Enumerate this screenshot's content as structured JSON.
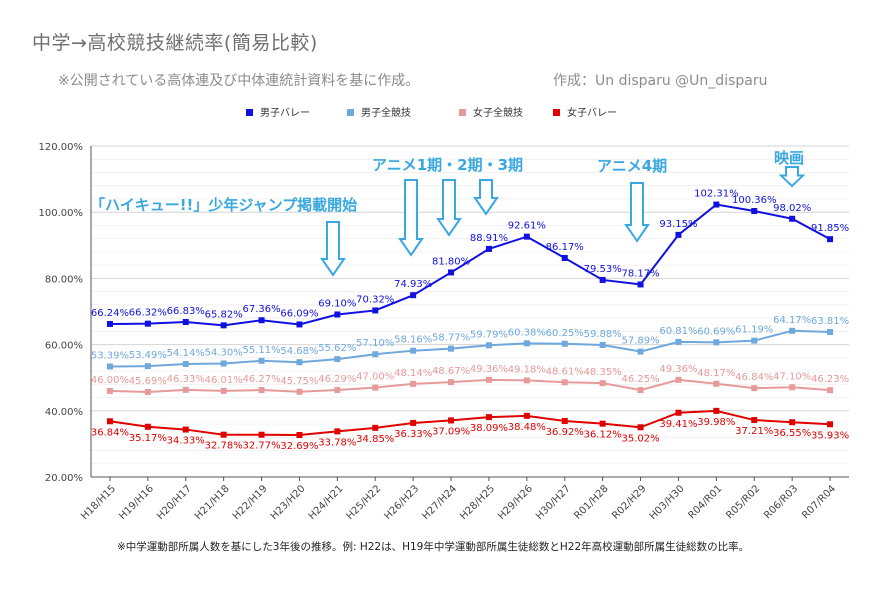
{
  "title": "中学→高校競技継続率(簡易比較)",
  "subtitle": "※公開されている高体連及び中体連統計資料を基に作成。",
  "author": "作成：Un disparu @Un_disparu",
  "footnote": "※中学運動部所属人数を基にした3年後の推移。例: H22は、H19年中学運動部所属生徒総数とH22年高校運動部所属生徒総数の比率。",
  "colors": {
    "boys_volley": "#1010e0",
    "boys_all": "#6fa8dc",
    "girls_all": "#e69a9a",
    "girls_volley": "#e00000",
    "annotation": "#3aa8e0"
  },
  "annotations": [
    {
      "text": "「ハイキュー!!」少年ジャンプ掲載開始",
      "at": "H24/H21"
    },
    {
      "text": "アニメ1期・2期・3期",
      "at": "H27/H24"
    },
    {
      "text": "アニメ4期",
      "at": "R02/H29"
    },
    {
      "text": "映画",
      "at": "R06/R03"
    }
  ],
  "chart_data": {
    "type": "line",
    "categories": [
      "H18/H15",
      "H19/H16",
      "H20/H17",
      "H21/H18",
      "H22/H19",
      "H23/H20",
      "H24/H21",
      "H25/H22",
      "H26/H23",
      "H27/H24",
      "H28/H25",
      "H29/H26",
      "H30/H27",
      "R01/H28",
      "R02/H29",
      "H03/H30",
      "R04/R01",
      "R05/R02",
      "R06/R03",
      "R07/R04"
    ],
    "ylim": [
      20,
      120
    ],
    "yticks": [
      "20.00%",
      "40.00%",
      "60.00%",
      "80.00%",
      "100.00%",
      "120.00%"
    ],
    "legend_position": "top",
    "grid": true,
    "series": [
      {
        "name": "男子バレー",
        "values": [
          66.24,
          66.32,
          66.83,
          65.82,
          67.36,
          66.09,
          69.1,
          70.32,
          74.93,
          81.8,
          88.91,
          92.61,
          86.17,
          79.53,
          78.17,
          93.15,
          102.31,
          100.36,
          98.02,
          91.85
        ],
        "labels": [
          "66.24%",
          "66.32%",
          "66.83%",
          "65.82%",
          "67.36%",
          "66.09%",
          "69.10%",
          "70.32%",
          "74.93%",
          "81.80%",
          "88.91%",
          "92.61%",
          "86.17%",
          "79.53%",
          "78.17%",
          "93.15%",
          "102.31%",
          "100.36%",
          "98.02%",
          "91.85%"
        ]
      },
      {
        "name": "男子全競技",
        "values": [
          53.39,
          53.49,
          54.14,
          54.3,
          55.11,
          54.68,
          55.62,
          57.1,
          58.16,
          58.77,
          59.79,
          60.38,
          60.25,
          59.88,
          57.89,
          60.81,
          60.69,
          61.19,
          64.17,
          63.81
        ],
        "labels": [
          "53.39%",
          "53.49%",
          "54.14%",
          "54.30%",
          "55.11%",
          "54.68%",
          "55.62%",
          "57.10%",
          "58.16%",
          "58.77%",
          "59.79%",
          "60.38%",
          "60.25%",
          "59.88%",
          "57.89%",
          "60.81%",
          "60.69%",
          "61.19%",
          "64.17%",
          "63.81%"
        ]
      },
      {
        "name": "女子全競技",
        "values": [
          46.0,
          45.69,
          46.33,
          46.01,
          46.27,
          45.75,
          46.29,
          47.0,
          48.14,
          48.67,
          49.36,
          49.18,
          48.61,
          48.35,
          46.25,
          49.36,
          48.17,
          46.84,
          47.1,
          46.23
        ],
        "labels": [
          "46.00%",
          "45.69%",
          "46.33%",
          "46.01%",
          "46.27%",
          "45.75%",
          "46.29%",
          "47.00%",
          "48.14%",
          "48.67%",
          "49.36%",
          "49.18%",
          "48.61%",
          "48.35%",
          "46.25%",
          "49.36%",
          "48.17%",
          "46.84%",
          "47.10%",
          "46.23%"
        ]
      },
      {
        "name": "女子バレー",
        "values": [
          36.84,
          35.17,
          34.33,
          32.78,
          32.77,
          32.69,
          33.78,
          34.85,
          36.33,
          37.09,
          38.09,
          38.48,
          36.92,
          36.12,
          35.02,
          39.41,
          39.98,
          37.21,
          36.55,
          35.93
        ],
        "labels": [
          "36.84%",
          "35.17%",
          "34.33%",
          "32.78%",
          "32.77%",
          "32.69%",
          "33.78%",
          "34.85%",
          "36.33%",
          "37.09%",
          "38.09%",
          "38.48%",
          "36.92%",
          "36.12%",
          "35.02%",
          "39.41%",
          "39.98%",
          "37.21%",
          "36.55%",
          "35.93%"
        ]
      }
    ]
  }
}
